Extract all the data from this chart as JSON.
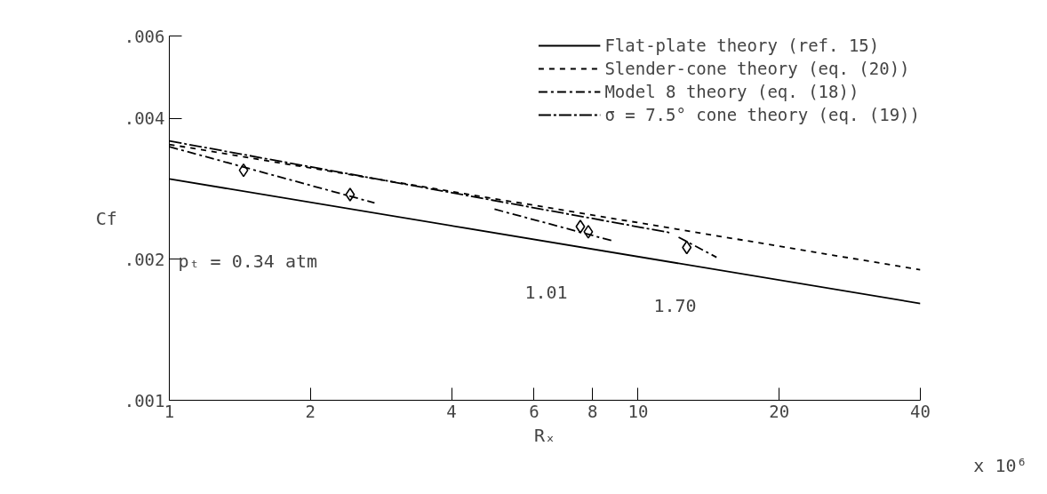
{
  "chart_data": {
    "type": "line",
    "log": "xy",
    "xlabel": "Rₓ",
    "ylabel": "Cf",
    "xlim": [
      1,
      40
    ],
    "ylim": [
      0.001,
      0.006
    ],
    "xticks": [
      1,
      2,
      4,
      6,
      8,
      10,
      20,
      40
    ],
    "yticks": [
      {
        "value": 0.001,
        "label": ".001"
      },
      {
        "value": 0.002,
        "label": ".002"
      },
      {
        "value": 0.004,
        "label": ".004"
      },
      {
        "value": 0.006,
        "label": ".006"
      }
    ],
    "grid": false,
    "legend": "top right",
    "series": [
      {
        "name": "Flat-plate theory (ref. 15)",
        "color": "#000000",
        "line_style": "solid",
        "x": [
          1,
          40
        ],
        "values": [
          0.00297,
          0.00161
        ]
      },
      {
        "name": "Slender-cone theory (eq. (20))",
        "color": "#000000",
        "line_style": "dashed",
        "x": [
          1,
          40
        ],
        "values": [
          0.00352,
          0.0019
        ]
      },
      {
        "name": "Model 8 theory (eq. (18))",
        "color": "#000000",
        "line_style": "dashdot",
        "x": [
          1,
          2.74,
          null,
          4.94,
          8.83,
          null,
          12.2,
          14.7
        ],
        "values": [
          0.00348,
          0.00264,
          null,
          0.00256,
          0.00219,
          null,
          0.00223,
          0.00202
        ]
      },
      {
        "name": "σ = 7.5° cone theory (eq. (19))",
        "color": "#000000",
        "line_style": "dotdash",
        "x": [
          1,
          11.7
        ],
        "values": [
          0.00358,
          0.00228
        ]
      },
      {
        "type": "scatter",
        "marker": "diamond",
        "color": "#000000",
        "x": [
          1.44,
          2.43,
          7.53,
          7.83,
          12.7
        ],
        "values": [
          0.0031,
          0.00275,
          0.00235,
          0.00229,
          0.00212
        ]
      }
    ],
    "annotations": [
      "pₜ = 0.34 atm",
      "1.01",
      "1.70",
      "x 10⁶"
    ]
  }
}
